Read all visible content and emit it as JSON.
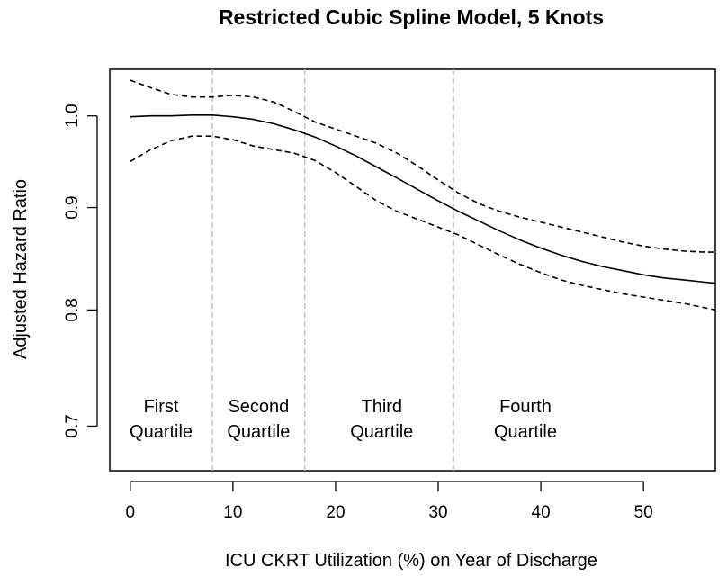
{
  "chart_data": {
    "type": "line",
    "title": "Restricted Cubic Spline Model, 5 Knots",
    "xlabel": "ICU CKRT Utilization (%) on Year of Discharge",
    "ylabel": "Adjusted Hazard Ratio",
    "xlim": [
      -2,
      57
    ],
    "ylim": [
      0.665,
      1.055
    ],
    "y_scale": "log",
    "x_ticks": [
      {
        "value": 0,
        "label": "0"
      },
      {
        "value": 10,
        "label": "10"
      },
      {
        "value": 20,
        "label": "20"
      },
      {
        "value": 30,
        "label": "30"
      },
      {
        "value": 40,
        "label": "40"
      },
      {
        "value": 50,
        "label": "50"
      }
    ],
    "y_ticks": [
      {
        "value": 0.7,
        "label": "0.7"
      },
      {
        "value": 0.8,
        "label": "0.8"
      },
      {
        "value": 0.9,
        "label": "0.9"
      },
      {
        "value": 1.0,
        "label": "1.0"
      }
    ],
    "quartile_cutoffs": [
      8,
      17,
      31.5
    ],
    "quartile_labels": [
      {
        "line1": "First",
        "line2": "Quartile",
        "x": 3
      },
      {
        "line1": "Second",
        "line2": "Quartile",
        "x": 12.5
      },
      {
        "line1": "Third",
        "line2": "Quartile",
        "x": 24.5
      },
      {
        "line1": "Fourth",
        "line2": "Quartile",
        "x": 38.5
      }
    ],
    "series": [
      {
        "style": "solid",
        "x": [
          0,
          2,
          4,
          6,
          8,
          10,
          12,
          14,
          16,
          18,
          20,
          22,
          24,
          26,
          28,
          30,
          32,
          34,
          36,
          38,
          40,
          42,
          44,
          46,
          48,
          50,
          52,
          54,
          56,
          57
        ],
        "y": [
          0.999,
          1.0,
          1.0,
          1.001,
          1.001,
          0.999,
          0.996,
          0.991,
          0.984,
          0.976,
          0.966,
          0.955,
          0.943,
          0.931,
          0.919,
          0.907,
          0.896,
          0.886,
          0.876,
          0.867,
          0.859,
          0.852,
          0.846,
          0.841,
          0.837,
          0.833,
          0.83,
          0.828,
          0.826,
          0.825
        ]
      },
      {
        "style": "dashed",
        "x": [
          0,
          2,
          4,
          6,
          8,
          10,
          12,
          14,
          16,
          18,
          20,
          22,
          24,
          26,
          28,
          30,
          32,
          34,
          36,
          38,
          40,
          42,
          44,
          46,
          48,
          50,
          52,
          54,
          56,
          57
        ],
        "y": [
          1.042,
          1.033,
          1.025,
          1.022,
          1.022,
          1.024,
          1.022,
          1.016,
          1.005,
          0.993,
          0.985,
          0.977,
          0.969,
          0.958,
          0.944,
          0.929,
          0.915,
          0.904,
          0.896,
          0.89,
          0.885,
          0.88,
          0.875,
          0.87,
          0.865,
          0.861,
          0.858,
          0.856,
          0.855,
          0.855
        ]
      },
      {
        "style": "dashed",
        "x": [
          0,
          2,
          4,
          6,
          8,
          10,
          12,
          14,
          16,
          18,
          20,
          22,
          24,
          26,
          28,
          30,
          32,
          34,
          36,
          38,
          40,
          42,
          44,
          46,
          48,
          50,
          52,
          54,
          56,
          57
        ],
        "y": [
          0.949,
          0.962,
          0.972,
          0.977,
          0.977,
          0.973,
          0.966,
          0.962,
          0.958,
          0.95,
          0.937,
          0.922,
          0.907,
          0.896,
          0.888,
          0.88,
          0.872,
          0.862,
          0.852,
          0.843,
          0.835,
          0.828,
          0.823,
          0.819,
          0.815,
          0.812,
          0.809,
          0.806,
          0.802,
          0.8
        ]
      }
    ],
    "grid": false,
    "legend": "none"
  }
}
